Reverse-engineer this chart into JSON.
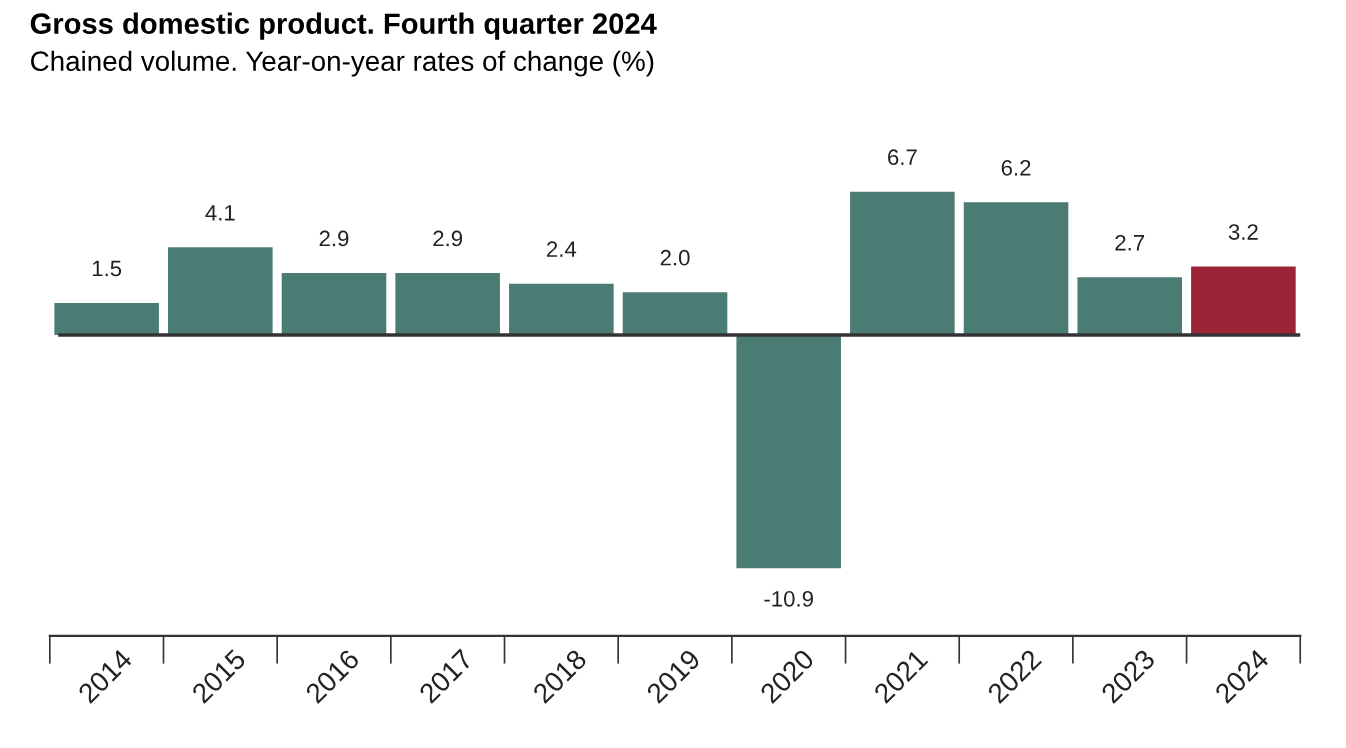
{
  "chart_data": {
    "type": "bar",
    "title": "Gross domestic product. Fourth quarter 2024",
    "subtitle": "Chained volume. Year-on-year rates of change (%)",
    "categories": [
      "2014",
      "2015",
      "2016",
      "2017",
      "2018",
      "2019",
      "2020",
      "2021",
      "2022",
      "2023",
      "2024"
    ],
    "values": [
      1.5,
      4.1,
      2.9,
      2.9,
      2.4,
      2.0,
      -10.9,
      6.7,
      6.2,
      2.7,
      3.2
    ],
    "colors": [
      "#4a7c74",
      "#4a7c74",
      "#4a7c74",
      "#4a7c74",
      "#4a7c74",
      "#4a7c74",
      "#4a7c74",
      "#4a7c74",
      "#4a7c74",
      "#4a7c74",
      "#9b2335"
    ],
    "value_labels": [
      "1.5",
      "4.1",
      "2.9",
      "2.9",
      "2.4",
      "2.0",
      "-10.9",
      "6.7",
      "6.2",
      "2.7",
      "3.2"
    ],
    "grid": false,
    "legend": false
  }
}
